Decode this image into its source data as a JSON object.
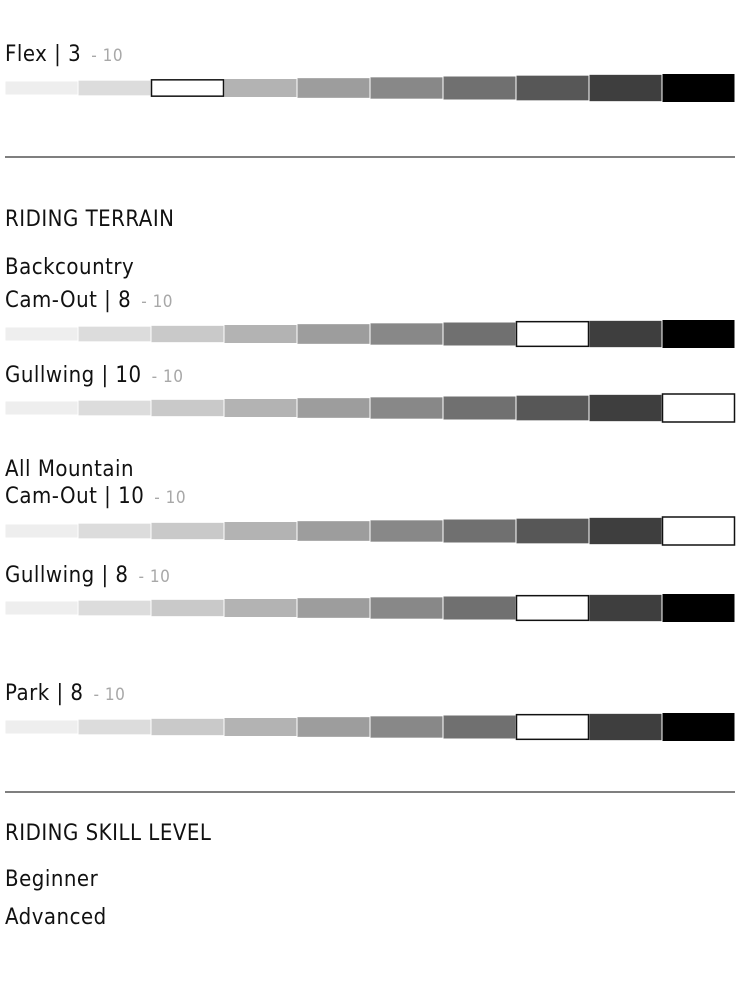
{
  "flex": {
    "rating_label": "Flex | 3",
    "rating": 3,
    "scale_label": "- 10",
    "scale_max": 10
  },
  "segment_colors": [
    "#eeeeee",
    "#dcdcdc",
    "#c9c9c9",
    "#b3b3b3",
    "#9d9d9d",
    "#888888",
    "#707070",
    "#575757",
    "#3e3e3e",
    "#000000"
  ],
  "terrain": {
    "title": "RIDING TERRAIN",
    "items": [
      {
        "heading": "Backcountry",
        "rating_label": "Cam-Out | 8",
        "rating": 8,
        "scale_label": "- 10",
        "scale_max": 10
      },
      {
        "rating_label": "Gullwing | 10",
        "rating": 10,
        "scale_label": "- 10",
        "scale_max": 10
      },
      {
        "heading": "All Mountain",
        "rating_label": "Cam-Out | 10",
        "rating": 10,
        "scale_label": "- 10",
        "scale_max": 10
      },
      {
        "rating_label": "Gullwing | 8",
        "rating": 8,
        "scale_label": "- 10",
        "scale_max": 10
      },
      {
        "rating_label": "Park | 8",
        "rating": 8,
        "scale_label": "- 10",
        "scale_max": 10
      }
    ]
  },
  "skill": {
    "title": "RIDING SKILL LEVEL",
    "levels": [
      "Beginner",
      "Advanced"
    ]
  }
}
